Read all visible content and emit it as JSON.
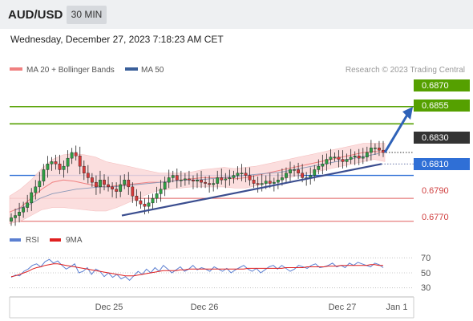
{
  "header": {
    "pair": "AUD/USD",
    "timeframe": "30 MIN"
  },
  "datetime": "Wednesday, December 27, 2023 7:18:23 AM CET",
  "legend": {
    "ma20": {
      "label": "MA 20 + Bollinger Bands",
      "color": "#f08080"
    },
    "ma50": {
      "label": "MA 50",
      "color": "#3a5f9a"
    }
  },
  "source": "Research © 2023 Trading Central",
  "rsi_legend": {
    "rsi": {
      "label": "RSI",
      "color": "#5b7fd1"
    },
    "ma9": {
      "label": "9MA",
      "color": "#e02020"
    }
  },
  "chart_data": [
    {
      "type": "candlestick",
      "ylim": [
        0.6767,
        0.6893
      ],
      "price_labels": [
        {
          "value": "0.6870",
          "kind": "resistance",
          "color": "#55a000"
        },
        {
          "value": "0.6855",
          "kind": "resistance",
          "color": "#55a000"
        },
        {
          "value": "0.6830",
          "kind": "last",
          "color": "#333333"
        },
        {
          "value": "0.6810",
          "kind": "pivot",
          "color": "#2f6fd6"
        },
        {
          "value": "0.6790",
          "kind": "support",
          "color": "#d04040"
        },
        {
          "value": "0.6770",
          "kind": "support",
          "color": "#d04040"
        }
      ],
      "x_labels": [
        "Dec 25",
        "Dec 26",
        "Dec 27",
        "Jan 1"
      ],
      "close_series": [
        0.6773,
        0.6775,
        0.6778,
        0.6782,
        0.6786,
        0.6795,
        0.68,
        0.6805,
        0.6815,
        0.682,
        0.6822,
        0.682,
        0.6815,
        0.6818,
        0.6825,
        0.683,
        0.6827,
        0.6818,
        0.6812,
        0.6808,
        0.6804,
        0.68,
        0.6806,
        0.6802,
        0.68,
        0.6798,
        0.6796,
        0.6802,
        0.6806,
        0.68,
        0.6792,
        0.6788,
        0.6785,
        0.6783,
        0.6786,
        0.679,
        0.6794,
        0.6798,
        0.6804,
        0.6808,
        0.681,
        0.6806,
        0.6806,
        0.6807,
        0.6806,
        0.6805,
        0.6806,
        0.6804,
        0.6803,
        0.6802,
        0.6803,
        0.6808,
        0.6806,
        0.6807,
        0.6808,
        0.681,
        0.6812,
        0.6812,
        0.681,
        0.6806,
        0.6803,
        0.6802,
        0.6803,
        0.6805,
        0.6803,
        0.6804,
        0.6806,
        0.6808,
        0.6812,
        0.6815,
        0.6815,
        0.6812,
        0.6808,
        0.6808,
        0.681,
        0.6815,
        0.6818,
        0.682,
        0.6824,
        0.6826,
        0.6826,
        0.6824,
        0.6822,
        0.6824,
        0.6826,
        0.6827,
        0.6825,
        0.6826,
        0.683,
        0.6834,
        0.6834,
        0.6832,
        0.683
      ],
      "bb_upper": [
        0.6792,
        0.6798,
        0.6806,
        0.6816,
        0.6824,
        0.6828,
        0.6829,
        0.6828,
        0.6826,
        0.6822,
        0.682,
        0.6818,
        0.6816,
        0.6814,
        0.6812,
        0.6812,
        0.6812,
        0.6813,
        0.6815,
        0.6816,
        0.6817,
        0.6816,
        0.6817,
        0.6818,
        0.682,
        0.6822,
        0.6824,
        0.6826,
        0.6828,
        0.683,
        0.6832,
        0.6834,
        0.6836,
        0.6838,
        0.6838,
        0.6838
      ],
      "bb_lower": [
        0.6768,
        0.677,
        0.6775,
        0.678,
        0.6782,
        0.6782,
        0.6781,
        0.678,
        0.6779,
        0.6779,
        0.6782,
        0.6786,
        0.679,
        0.6794,
        0.6797,
        0.6798,
        0.6799,
        0.68,
        0.68,
        0.68,
        0.68,
        0.6799,
        0.6799,
        0.6801,
        0.6803,
        0.6805,
        0.6808,
        0.681,
        0.6812,
        0.6814,
        0.6816,
        0.6818,
        0.682,
        0.6822,
        0.6824,
        0.6822
      ],
      "ma20": [
        0.6778,
        0.6782,
        0.679,
        0.6798,
        0.6804,
        0.6806,
        0.6805,
        0.6803,
        0.6801,
        0.68,
        0.6801,
        0.6802,
        0.6803,
        0.6804,
        0.6804,
        0.6805,
        0.6806,
        0.6807,
        0.6808,
        0.6808,
        0.6808,
        0.6807,
        0.6808,
        0.681,
        0.6812,
        0.6814,
        0.6816,
        0.6818,
        0.682,
        0.6822,
        0.6824,
        0.6826,
        0.6828,
        0.683,
        0.6831,
        0.683
      ],
      "ma50": [
        0.678,
        0.6784,
        0.679,
        0.6794,
        0.6796,
        0.6798,
        0.6799,
        0.68,
        0.68,
        0.6801,
        0.6802,
        0.6803,
        0.6804,
        0.6805,
        0.6806,
        0.6806,
        0.6807,
        0.6808,
        0.6809,
        0.681,
        0.6811,
        0.6812,
        0.6813,
        0.6815,
        0.6817,
        0.6819,
        0.6821,
        0.6823,
        0.6825,
        0.6827,
        0.6829
      ],
      "trendline": [
        [
          0.6775,
          0.682
        ]
      ],
      "projection": {
        "from": 0.683,
        "to": 0.6867
      }
    },
    {
      "type": "line",
      "name": "RSI",
      "ylim": [
        20,
        80
      ],
      "y_ticks": [
        "70",
        "50",
        "30"
      ],
      "rsi_values": [
        44,
        47,
        46,
        52,
        55,
        60,
        62,
        58,
        65,
        68,
        63,
        66,
        60,
        55,
        58,
        62,
        50,
        52,
        57,
        48,
        55,
        52,
        45,
        50,
        44,
        48,
        42,
        45,
        40,
        46,
        52,
        48,
        55,
        50,
        57,
        52,
        60,
        55,
        50,
        54,
        58,
        52,
        55,
        60,
        54,
        57,
        55,
        52,
        58,
        55,
        52,
        56,
        50,
        54,
        57,
        60,
        55,
        52,
        56,
        50,
        54,
        58,
        60,
        55,
        60,
        56,
        52,
        55,
        60,
        58,
        56,
        60,
        62,
        57,
        58,
        60,
        63,
        58,
        60,
        57,
        63,
        60,
        64,
        62,
        60,
        58,
        63,
        61,
        57
      ],
      "ma9_values": [
        45,
        46,
        48,
        50,
        52,
        55,
        57,
        58,
        60,
        61,
        62,
        62,
        61,
        60,
        59,
        58,
        57,
        56,
        55,
        54,
        53,
        52,
        51,
        50,
        49,
        48,
        47,
        46,
        46,
        46,
        47,
        48,
        49,
        50,
        51,
        52,
        53,
        53,
        53,
        53,
        54,
        54,
        55,
        55,
        55,
        55,
        55,
        55,
        55,
        55,
        55,
        55,
        55,
        55,
        55,
        55,
        56,
        56,
        56,
        56,
        56,
        56,
        56,
        56,
        56,
        57,
        57,
        57,
        57,
        57,
        58,
        58,
        58,
        58,
        58,
        59,
        59,
        59,
        60,
        60,
        60,
        60,
        60,
        60,
        60,
        61,
        61,
        60,
        60
      ]
    }
  ]
}
